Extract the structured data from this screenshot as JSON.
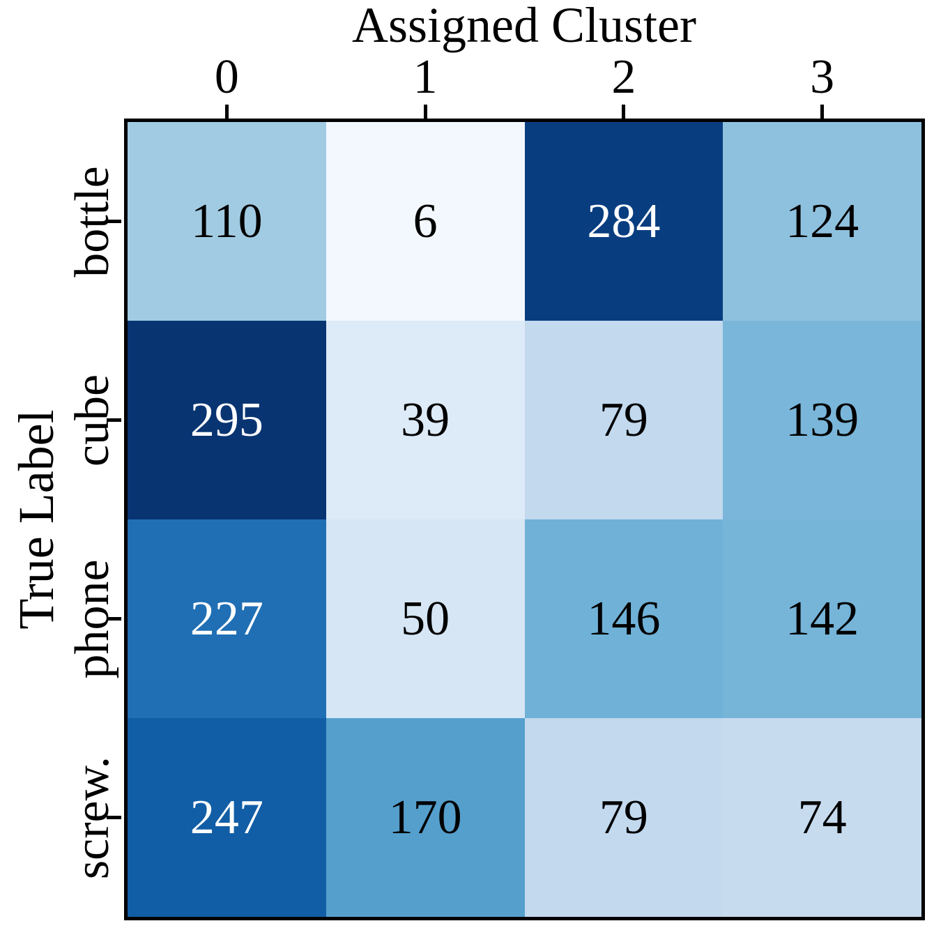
{
  "figure": {
    "background": "#ffffff",
    "frame_color": "#000000"
  },
  "chart_data": {
    "type": "heatmap",
    "title": "Assigned Cluster",
    "xlabel": "Assigned Cluster",
    "ylabel": "True Label",
    "x_tick_labels": [
      "0",
      "1",
      "2",
      "3"
    ],
    "y_tick_labels": [
      "bottle",
      "cube",
      "phone",
      "screw."
    ],
    "values": [
      [
        110,
        6,
        284,
        124
      ],
      [
        295,
        39,
        79,
        139
      ],
      [
        227,
        50,
        146,
        142
      ],
      [
        247,
        170,
        79,
        74
      ]
    ],
    "colormap": "Blues",
    "vmin": 0,
    "vmax": 300,
    "legend": "none",
    "grid": false,
    "cell_colors": [
      [
        "#a1cbe2",
        "#f3f8fe",
        "#083e80",
        "#8ec1de"
      ],
      [
        "#083472",
        "#ddeaf7",
        "#c2d9ee",
        "#7ab6d9"
      ],
      [
        "#206fb4",
        "#d6e6f4",
        "#70b1d7",
        "#76b4d8"
      ],
      [
        "#125ea6",
        "#559fcd",
        "#c2d9ee",
        "#c7dbef"
      ]
    ],
    "cell_text_colors": [
      [
        "#000000",
        "#000000",
        "#ffffff",
        "#000000"
      ],
      [
        "#ffffff",
        "#000000",
        "#000000",
        "#000000"
      ],
      [
        "#ffffff",
        "#000000",
        "#000000",
        "#000000"
      ],
      [
        "#ffffff",
        "#000000",
        "#000000",
        "#000000"
      ]
    ]
  }
}
